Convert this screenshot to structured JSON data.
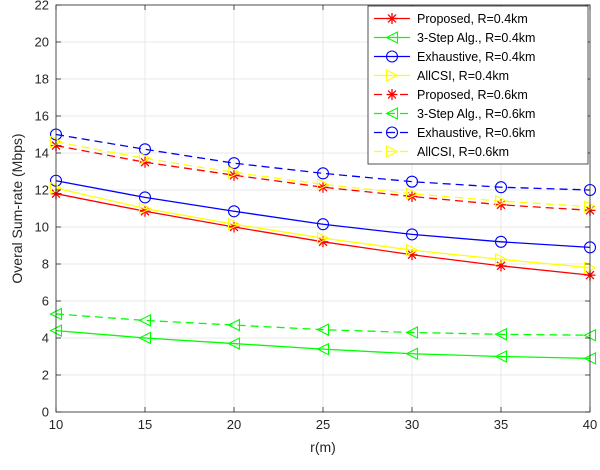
{
  "chart_data": {
    "type": "line",
    "xlabel": "r(m)",
    "ylabel": "Overal Sum-rate (Mbps)",
    "x": [
      10,
      15,
      20,
      25,
      30,
      35,
      40
    ],
    "xticks": [
      10,
      15,
      20,
      25,
      30,
      35,
      40
    ],
    "yticks": [
      0,
      2,
      4,
      6,
      8,
      10,
      12,
      14,
      16,
      18,
      20,
      22
    ],
    "xlim": [
      10,
      40
    ],
    "ylim": [
      0,
      22
    ],
    "grid": true,
    "legend_position": "top-right",
    "series": [
      {
        "name": "Proposed, R=0.4km",
        "color": "#ff0000",
        "style": "solid",
        "marker": "asterisk",
        "values": [
          11.8,
          10.85,
          10.0,
          9.2,
          8.5,
          7.9,
          7.4
        ]
      },
      {
        "name": "3-Step Alg., R=0.4km",
        "color": "#00ff00",
        "style": "solid",
        "marker": "triangle-left",
        "values": [
          4.4,
          4.0,
          3.7,
          3.4,
          3.15,
          3.0,
          2.9
        ]
      },
      {
        "name": "Exhaustive, R=0.4km",
        "color": "#0000ff",
        "style": "solid",
        "marker": "circle",
        "values": [
          12.5,
          11.6,
          10.85,
          10.15,
          9.6,
          9.2,
          8.9
        ]
      },
      {
        "name": "AllCSI, R=0.4km",
        "color": "#ffff00",
        "style": "solid",
        "marker": "triangle-right",
        "values": [
          12.1,
          11.0,
          10.15,
          9.4,
          8.75,
          8.25,
          7.8
        ]
      },
      {
        "name": "Proposed, R=0.6km",
        "color": "#ff0000",
        "style": "dashed",
        "marker": "asterisk",
        "values": [
          14.4,
          13.5,
          12.8,
          12.15,
          11.65,
          11.2,
          10.9
        ]
      },
      {
        "name": "3-Step Alg., R=0.6km",
        "color": "#00ff00",
        "style": "dashed",
        "marker": "triangle-left",
        "values": [
          5.3,
          4.95,
          4.7,
          4.45,
          4.3,
          4.2,
          4.15
        ]
      },
      {
        "name": "Exhaustive, R=0.6km",
        "color": "#0000ff",
        "style": "dashed",
        "marker": "circle",
        "values": [
          15.0,
          14.2,
          13.45,
          12.9,
          12.45,
          12.15,
          12.0
        ]
      },
      {
        "name": "AllCSI, R=0.6km",
        "color": "#ffff00",
        "style": "dashed",
        "marker": "triangle-right",
        "values": [
          14.6,
          13.7,
          12.95,
          12.3,
          11.8,
          11.4,
          11.1
        ]
      }
    ]
  }
}
